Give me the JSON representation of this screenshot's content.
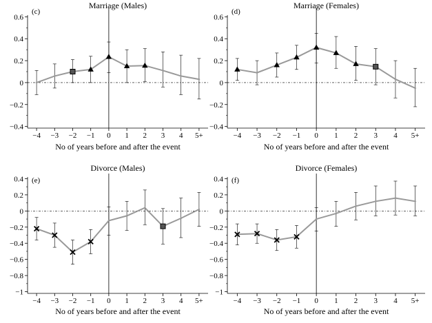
{
  "chart_data": [
    {
      "panel": "(c)",
      "title": "Marriage (Males)",
      "type": "line",
      "x": [
        "−4",
        "−3",
        "−2",
        "−1",
        "0",
        "1",
        "2",
        "3",
        "4",
        "5+"
      ],
      "xlabel": "No of years before and after the event",
      "ylim": [
        -0.4,
        0.6
      ],
      "yticks": [
        "−0.4",
        "−0.2",
        "0",
        "0.2",
        "0.4",
        "0.6"
      ],
      "values": [
        0.0,
        0.06,
        0.1,
        0.12,
        0.235,
        0.15,
        0.155,
        0.11,
        0.06,
        0.03
      ],
      "ci_low": [
        -0.11,
        -0.05,
        0.0,
        0.0,
        0.09,
        0.0,
        0.01,
        -0.04,
        -0.11,
        -0.15
      ],
      "ci_high": [
        0.11,
        0.17,
        0.21,
        0.24,
        0.37,
        0.3,
        0.31,
        0.28,
        0.25,
        0.22
      ],
      "markers": [
        "none",
        "none",
        "square",
        "triangle",
        "triangle",
        "triangle",
        "triangle",
        "none",
        "none",
        "none"
      ]
    },
    {
      "panel": "(d)",
      "title": "Marriage (Females)",
      "type": "line",
      "x": [
        "−4",
        "−3",
        "−2",
        "−1",
        "0",
        "1",
        "2",
        "3",
        "4",
        "5+"
      ],
      "xlabel": "No of years before and after the event",
      "ylim": [
        -0.4,
        0.6
      ],
      "yticks": [
        "−0.4",
        "−0.2",
        "0",
        "0.2",
        "0.4",
        "0.6"
      ],
      "values": [
        0.12,
        0.09,
        0.16,
        0.23,
        0.32,
        0.27,
        0.17,
        0.145,
        0.03,
        -0.05
      ],
      "ci_low": [
        0.02,
        -0.02,
        0.05,
        0.12,
        0.18,
        0.13,
        0.02,
        -0.02,
        -0.14,
        -0.22
      ],
      "ci_high": [
        0.22,
        0.2,
        0.27,
        0.34,
        0.45,
        0.42,
        0.33,
        0.31,
        0.2,
        0.13
      ],
      "markers": [
        "triangle",
        "none",
        "triangle",
        "triangle",
        "triangle",
        "triangle",
        "triangle",
        "square",
        "none",
        "none"
      ]
    },
    {
      "panel": "(e)",
      "title": "Divorce (Males)",
      "type": "line",
      "x": [
        "−4",
        "−3",
        "−2",
        "−1",
        "0",
        "1",
        "2",
        "3",
        "4",
        "5+"
      ],
      "xlabel": "No of years before and after the event",
      "ylim": [
        -1.0,
        0.4
      ],
      "yticks": [
        "−1",
        "−0.8",
        "−0.6",
        "−0.4",
        "−0.2",
        "0",
        "0.2",
        "0.4"
      ],
      "values": [
        -0.22,
        -0.3,
        -0.51,
        -0.38,
        -0.12,
        -0.06,
        0.04,
        -0.19,
        -0.09,
        0.02
      ],
      "ci_low": [
        -0.36,
        -0.45,
        -0.66,
        -0.53,
        -0.3,
        -0.24,
        -0.17,
        -0.41,
        -0.33,
        -0.19
      ],
      "ci_high": [
        -0.08,
        -0.15,
        -0.36,
        -0.23,
        0.05,
        0.12,
        0.26,
        0.03,
        0.16,
        0.23
      ],
      "markers": [
        "x",
        "x",
        "x",
        "x",
        "none",
        "none",
        "none",
        "square",
        "none",
        "none"
      ]
    },
    {
      "panel": "(f)",
      "title": "Divorce (Females)",
      "type": "line",
      "x": [
        "−4",
        "−3",
        "−2",
        "−1",
        "0",
        "1",
        "2",
        "3",
        "4",
        "5+"
      ],
      "xlabel": "No of years before and after the event",
      "ylim": [
        -1.0,
        0.4
      ],
      "yticks": [
        "−1",
        "−0.8",
        "−0.6",
        "−0.4",
        "−0.2",
        "0",
        "0.2",
        "0.4"
      ],
      "values": [
        -0.29,
        -0.28,
        -0.36,
        -0.32,
        -0.1,
        -0.03,
        0.06,
        0.12,
        0.16,
        0.12
      ],
      "ci_low": [
        -0.42,
        -0.4,
        -0.49,
        -0.46,
        -0.25,
        -0.19,
        -0.11,
        -0.06,
        -0.05,
        -0.06
      ],
      "ci_high": [
        -0.16,
        -0.16,
        -0.23,
        -0.18,
        0.04,
        0.12,
        0.23,
        0.31,
        0.37,
        0.31
      ],
      "markers": [
        "x",
        "x",
        "x",
        "x",
        "none",
        "none",
        "none",
        "none",
        "none",
        "none"
      ]
    }
  ]
}
